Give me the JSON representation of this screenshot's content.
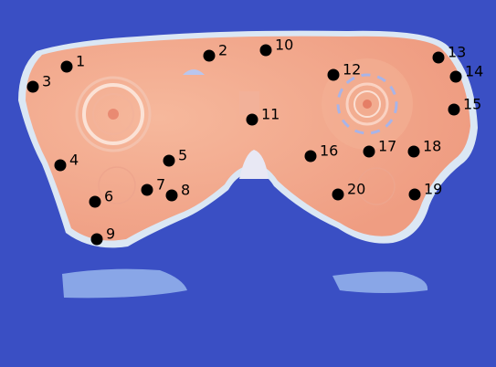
{
  "colors": {
    "background": "#3a4fc4",
    "part_fill": "#f0a889",
    "part_edge": "#d9e6f2",
    "shadow": "#8fb0ec",
    "marker": "#000000"
  },
  "points": [
    {
      "label": "1"
    },
    {
      "label": "2"
    },
    {
      "label": "3"
    },
    {
      "label": "4"
    },
    {
      "label": "5"
    },
    {
      "label": "6"
    },
    {
      "label": "7"
    },
    {
      "label": "8"
    },
    {
      "label": "9"
    },
    {
      "label": "10"
    },
    {
      "label": "11"
    },
    {
      "label": "12"
    },
    {
      "label": "13"
    },
    {
      "label": "14"
    },
    {
      "label": "15"
    },
    {
      "label": "16"
    },
    {
      "label": "17"
    },
    {
      "label": "18"
    },
    {
      "label": "19"
    },
    {
      "label": "20"
    }
  ]
}
